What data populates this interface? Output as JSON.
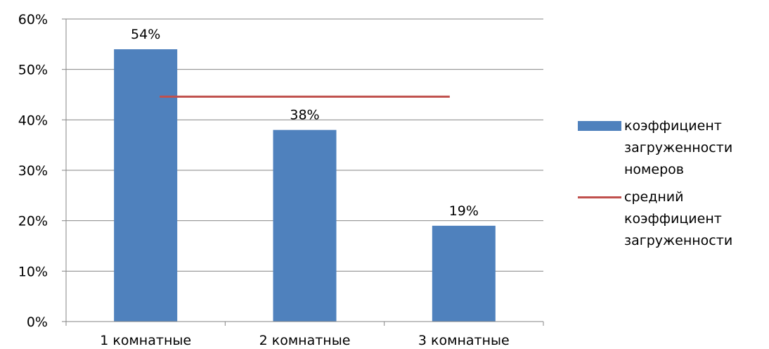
{
  "chart_data": {
    "type": "bar",
    "categories": [
      "1 комнатные",
      "2 комнатные",
      "3 комнатные"
    ],
    "series": [
      {
        "name": "коэффициент загруженности номеров",
        "type": "bar",
        "values": [
          54,
          38,
          19
        ],
        "data_labels": [
          "54%",
          "38%",
          "19%"
        ],
        "color": "#4f81bd"
      },
      {
        "name": "средний коэффициент загруженности",
        "type": "line",
        "values": [
          44.6,
          44.6,
          44.6
        ],
        "color": "#c0504d"
      }
    ],
    "ylim": [
      0,
      60
    ],
    "yticks": [
      "0%",
      "10%",
      "20%",
      "30%",
      "40%",
      "50%",
      "60%"
    ],
    "grid": true,
    "legend_position": "right",
    "gridline_color": "#868686"
  },
  "legend": {
    "items": [
      {
        "label": "коэффициент загруженности номеров",
        "kind": "bar",
        "color": "#4f81bd"
      },
      {
        "label": "средний коэффициент загруженности",
        "kind": "line",
        "color": "#c0504d"
      }
    ]
  }
}
